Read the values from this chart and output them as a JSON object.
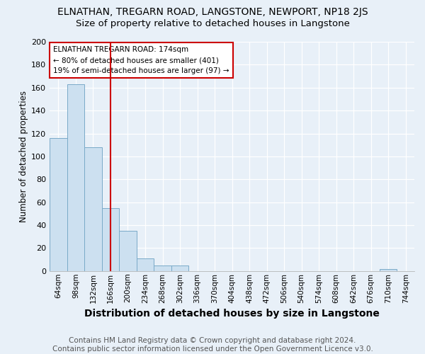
{
  "title": "ELNATHAN, TREGARN ROAD, LANGSTONE, NEWPORT, NP18 2JS",
  "subtitle": "Size of property relative to detached houses in Langstone",
  "xlabel": "Distribution of detached houses by size in Langstone",
  "ylabel": "Number of detached properties",
  "footer": "Contains HM Land Registry data © Crown copyright and database right 2024.\nContains public sector information licensed under the Open Government Licence v3.0.",
  "bin_labels": [
    "64sqm",
    "98sqm",
    "132sqm",
    "166sqm",
    "200sqm",
    "234sqm",
    "268sqm",
    "302sqm",
    "336sqm",
    "370sqm",
    "404sqm",
    "438sqm",
    "472sqm",
    "506sqm",
    "540sqm",
    "574sqm",
    "608sqm",
    "642sqm",
    "676sqm",
    "710sqm",
    "744sqm"
  ],
  "bar_heights": [
    116,
    163,
    108,
    55,
    35,
    11,
    5,
    5,
    0,
    0,
    0,
    0,
    0,
    0,
    0,
    0,
    0,
    0,
    0,
    2,
    0
  ],
  "bar_color": "#cce0f0",
  "bar_edge_color": "#7aaac8",
  "vline_x": 3,
  "vline_color": "#cc0000",
  "annotation_text": "ELNATHAN TREGARN ROAD: 174sqm\n← 80% of detached houses are smaller (401)\n19% of semi-detached houses are larger (97) →",
  "annotation_box_color": "#ffffff",
  "annotation_box_edge_color": "#cc0000",
  "ylim": [
    0,
    200
  ],
  "yticks": [
    0,
    20,
    40,
    60,
    80,
    100,
    120,
    140,
    160,
    180,
    200
  ],
  "background_color": "#e8f0f8",
  "title_fontsize": 10,
  "subtitle_fontsize": 9.5,
  "xlabel_fontsize": 10,
  "ylabel_fontsize": 8.5,
  "footer_fontsize": 7.5,
  "grid_color": "#ffffff",
  "tick_label_fontsize": 7.5
}
